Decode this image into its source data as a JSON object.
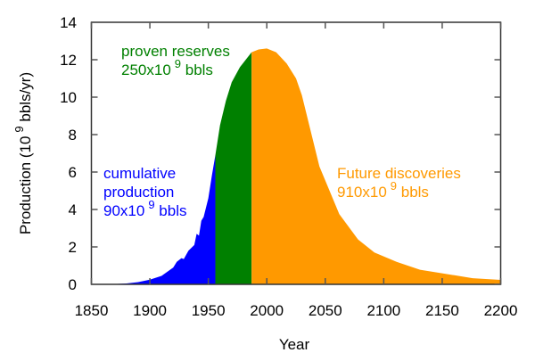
{
  "chart_data": {
    "type": "area",
    "xlabel": "Year",
    "ylabel": "Production (10 9 bbls/yr)",
    "ylabel_parts": {
      "pre": "Production (10",
      "sup": "9",
      "post": " bbls/yr)"
    },
    "xlim": [
      1850,
      2200
    ],
    "ylim": [
      0,
      14
    ],
    "xticks": [
      1850,
      1900,
      1950,
      2000,
      2050,
      2100,
      2150,
      2200
    ],
    "yticks": [
      0,
      2,
      4,
      6,
      8,
      10,
      12,
      14
    ],
    "grid": false,
    "series": [
      {
        "key": "cumulative",
        "color": "#0000ff",
        "label": {
          "l1": "cumulative",
          "l2": "production",
          "pre": "90x10",
          "sup": "9",
          "post": " bbls"
        },
        "x": [
          1850,
          1870,
          1880,
          1890,
          1900,
          1910,
          1920,
          1923,
          1927,
          1929,
          1933,
          1938,
          1940,
          1942,
          1944,
          1946,
          1950,
          1953,
          1956
        ],
        "y": [
          0,
          0.02,
          0.05,
          0.12,
          0.25,
          0.45,
          0.9,
          1.2,
          1.4,
          1.35,
          1.8,
          2.1,
          2.7,
          2.6,
          3.4,
          3.6,
          4.6,
          5.8,
          6.9
        ]
      },
      {
        "key": "proven",
        "color": "#008000",
        "label": {
          "l1": "proven reserves",
          "pre": "250x10",
          "sup": "9",
          "post": " bbls"
        },
        "x": [
          1956,
          1960,
          1965,
          1970,
          1977,
          1987
        ],
        "y": [
          6.9,
          8.5,
          9.8,
          10.8,
          11.6,
          12.4
        ]
      },
      {
        "key": "future",
        "color": "#ff9900",
        "label": {
          "l1": "Future discoveries",
          "pre": "910x10",
          "sup": "9",
          "post": " bbls"
        },
        "x": [
          1987,
          1993,
          2000,
          2008,
          2017,
          2025,
          2030,
          2045,
          2062,
          2078,
          2092,
          2111,
          2131,
          2150,
          2176,
          2200
        ],
        "y": [
          12.4,
          12.55,
          12.6,
          12.4,
          11.8,
          11.0,
          10.1,
          6.3,
          3.75,
          2.4,
          1.7,
          1.2,
          0.78,
          0.59,
          0.33,
          0.24
        ]
      }
    ]
  }
}
